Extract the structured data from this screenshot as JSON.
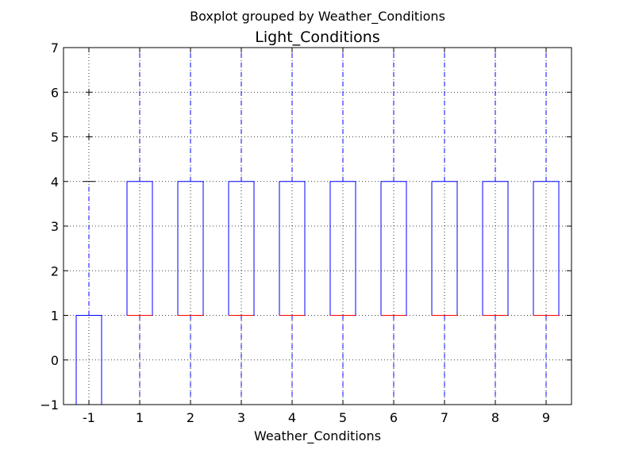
{
  "chart_data": {
    "type": "box",
    "suptitle": "Boxplot grouped by Weather_Conditions",
    "title": "Light_Conditions",
    "xlabel": "Weather_Conditions",
    "ylabel": "",
    "ylim": [
      -1,
      7
    ],
    "yticks": [
      -1,
      0,
      1,
      2,
      3,
      4,
      5,
      6,
      7
    ],
    "ytick_labels": [
      "−1",
      "0",
      "1",
      "2",
      "3",
      "4",
      "5",
      "6",
      "7"
    ],
    "grid": true,
    "categories": [
      "-1",
      "1",
      "2",
      "3",
      "4",
      "5",
      "6",
      "7",
      "8",
      "9"
    ],
    "boxes": [
      {
        "category": "-1",
        "whislo": -1,
        "q1": -1,
        "median": -1,
        "q3": 1,
        "whishi": 4,
        "fliers": [
          5,
          6
        ]
      },
      {
        "category": "1",
        "whislo": -1,
        "q1": 1,
        "median": 1,
        "q3": 4,
        "whishi": 7,
        "fliers": []
      },
      {
        "category": "2",
        "whislo": -1,
        "q1": 1,
        "median": 1,
        "q3": 4,
        "whishi": 7,
        "fliers": []
      },
      {
        "category": "3",
        "whislo": -1,
        "q1": 1,
        "median": 1,
        "q3": 4,
        "whishi": 7,
        "fliers": []
      },
      {
        "category": "4",
        "whislo": -1,
        "q1": 1,
        "median": 1,
        "q3": 4,
        "whishi": 7,
        "fliers": []
      },
      {
        "category": "5",
        "whislo": -1,
        "q1": 1,
        "median": 1,
        "q3": 4,
        "whishi": 7,
        "fliers": []
      },
      {
        "category": "6",
        "whislo": -1,
        "q1": 1,
        "median": 1,
        "q3": 4,
        "whishi": 7,
        "fliers": []
      },
      {
        "category": "7",
        "whislo": -1,
        "q1": 1,
        "median": 1,
        "q3": 4,
        "whishi": 7,
        "fliers": []
      },
      {
        "category": "8",
        "whislo": -1,
        "q1": 1,
        "median": 1,
        "q3": 4,
        "whishi": 7,
        "fliers": []
      },
      {
        "category": "9",
        "whislo": -1,
        "q1": 1,
        "median": 1,
        "q3": 4,
        "whishi": 7,
        "fliers": []
      }
    ],
    "colors": {
      "box": "#0000ff",
      "whisker": "#0000ff",
      "median": "#ff0000",
      "flier": "#000000",
      "grid": "#000000",
      "axes": "#000000"
    }
  }
}
